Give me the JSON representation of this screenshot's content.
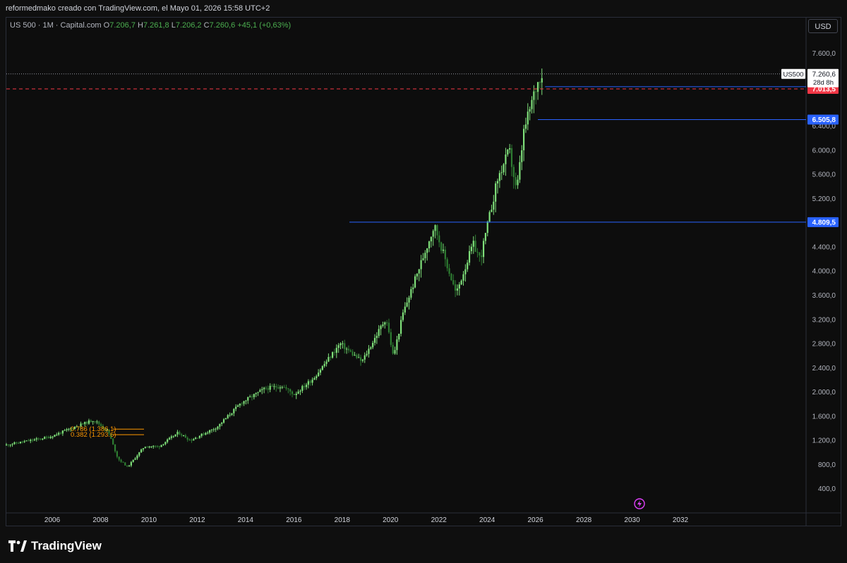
{
  "header": {
    "caption": "reformedmako creado con TradingView.com, el Mayo 01, 2026 15:58 UTC+2"
  },
  "legend": {
    "symbol": "US 500 · 1M · Capital.com",
    "o_label": "O",
    "o_value": "7.206,7",
    "h_label": "H",
    "h_value": "7.261,8",
    "l_label": "L",
    "l_value": "7.206,2",
    "c_label": "C",
    "c_value": "7.260,6",
    "change": "+45,1 (+0,63%)"
  },
  "currency_button": "USD",
  "brand": "TradingView",
  "colors": {
    "up": "#7fe07a",
    "down": "#2e7d32",
    "blue": "#2962ff",
    "red": "#f23645",
    "fib": "#ff9800"
  },
  "chart_data": {
    "type": "candlestick",
    "symbol": "US500",
    "ylim": [
      0,
      7900
    ],
    "xlim": [
      2004.1,
      2037.2
    ],
    "y_ticks": [
      400,
      800,
      1200,
      1600,
      2000,
      2400,
      2800,
      3200,
      3600,
      4000,
      4400,
      4800,
      5200,
      5600,
      6000,
      6400,
      6800,
      7200,
      7600
    ],
    "y_tick_labels": [
      "400,0",
      "800,0",
      "1.200,0",
      "1.600,0",
      "2.000,0",
      "2.400,0",
      "2.800,0",
      "3.200,0",
      "3.600,0",
      "4.000,0",
      "4.400,0",
      "",
      "5.200,0",
      "5.600,0",
      "6.000,0",
      "6.400,0",
      "",
      "",
      "7.600,0"
    ],
    "x_ticks": [
      2006,
      2008,
      2010,
      2012,
      2014,
      2016,
      2018,
      2020,
      2022,
      2024,
      2026,
      2028,
      2030,
      2032
    ],
    "x_tick_labels": [
      "2006",
      "2008",
      "2010",
      "2012",
      "2014",
      "2016",
      "2018",
      "2020",
      "2022",
      "2024",
      "2026",
      "2028",
      "2030",
      "2032"
    ],
    "price_path": [
      [
        2004.1,
        1120
      ],
      [
        2005.0,
        1185
      ],
      [
        2006.0,
        1260
      ],
      [
        2007.0,
        1420
      ],
      [
        2007.8,
        1540
      ],
      [
        2008.4,
        1350
      ],
      [
        2008.8,
        900
      ],
      [
        2009.2,
        760
      ],
      [
        2009.9,
        1100
      ],
      [
        2010.5,
        1100
      ],
      [
        2011.3,
        1330
      ],
      [
        2011.8,
        1200
      ],
      [
        2012.9,
        1420
      ],
      [
        2013.9,
        1820
      ],
      [
        2014.9,
        2060
      ],
      [
        2015.6,
        2100
      ],
      [
        2016.1,
        1960
      ],
      [
        2016.9,
        2230
      ],
      [
        2018.0,
        2800
      ],
      [
        2018.9,
        2500
      ],
      [
        2019.9,
        3230
      ],
      [
        2020.2,
        2580
      ],
      [
        2020.6,
        3300
      ],
      [
        2021.9,
        4760
      ],
      [
        2022.8,
        3620
      ],
      [
        2023.5,
        4450
      ],
      [
        2023.8,
        4200
      ],
      [
        2024.5,
        5500
      ],
      [
        2025.0,
        6000
      ],
      [
        2025.3,
        5300
      ],
      [
        2025.6,
        6300
      ],
      [
        2026.0,
        6900
      ],
      [
        2026.3,
        7260
      ]
    ],
    "last_price": {
      "label": "US500",
      "value": "7.260,6",
      "countdown": "28d 8h",
      "price": 7260.6
    },
    "horizontal_lines": [
      {
        "price": 7049.4,
        "label": "7.049,4",
        "color": "blue",
        "x_start": 2026.4
      },
      {
        "price": 7013.5,
        "label": "7.013,5",
        "color": "red",
        "dashed": true,
        "x_start": 2004.1
      },
      {
        "price": 6505.8,
        "label": "6.505,8",
        "color": "blue",
        "x_start": 2026.1
      },
      {
        "price": 4809.5,
        "label": "4.809,5",
        "color": "blue",
        "x_start": 2018.3
      }
    ],
    "fib_labels": [
      {
        "text": "0.786 (1.386.1)",
        "price": 1386.1
      },
      {
        "text": "0.382 (1.293.6)",
        "price": 1293.6
      }
    ]
  }
}
